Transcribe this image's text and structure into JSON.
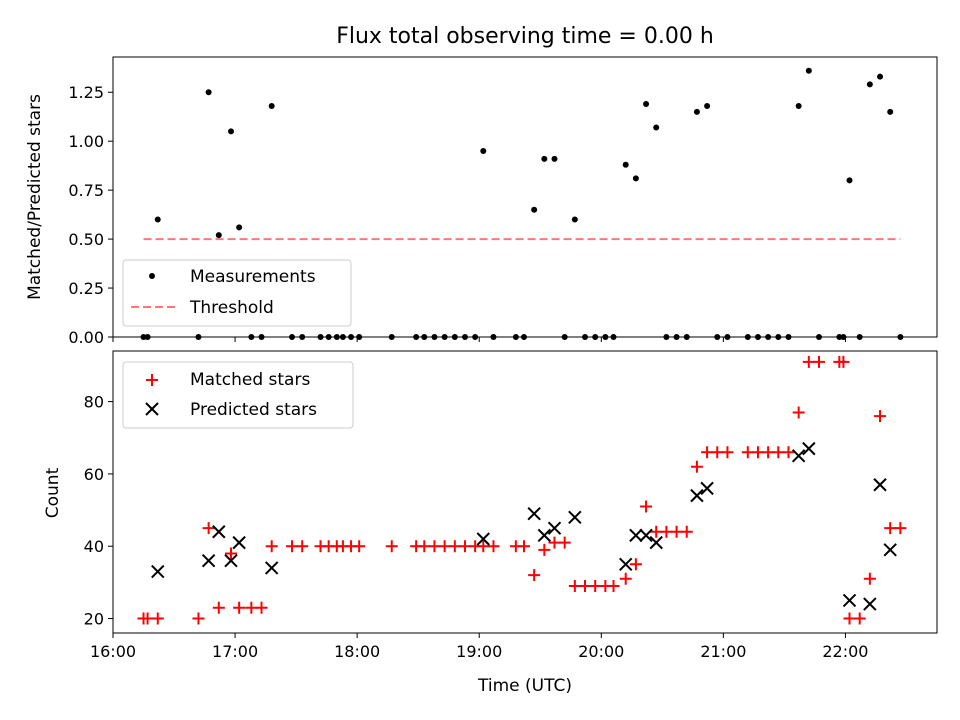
{
  "chart_data": [
    {
      "type": "scatter",
      "title": "Flux total observing time = 0.00 h",
      "xlabel": "",
      "ylabel": "Matched/Predicted stars",
      "xlim": [
        "16:00",
        "22:45"
      ],
      "ylim": [
        0,
        1.43
      ],
      "xtick_labels": [],
      "ytick_values": [
        0.0,
        0.25,
        0.5,
        0.75,
        1.0,
        1.25
      ],
      "ytick_labels": [
        "0.00",
        "0.25",
        "0.50",
        "0.75",
        "1.00",
        "1.25"
      ],
      "legend": {
        "position": "lower-left",
        "entries": [
          "Measurements",
          "Threshold"
        ]
      },
      "series": [
        {
          "name": "Measurements",
          "color": "#000000",
          "marker": "dot",
          "points": [
            [
              "16:15",
              0.0
            ],
            [
              "16:17",
              0.0
            ],
            [
              "16:22",
              0.6
            ],
            [
              "16:42",
              0.0
            ],
            [
              "16:47",
              1.25
            ],
            [
              "16:52",
              0.52
            ],
            [
              "16:58",
              1.05
            ],
            [
              "17:02",
              0.56
            ],
            [
              "17:08",
              0.0
            ],
            [
              "17:13",
              0.0
            ],
            [
              "17:18",
              1.18
            ],
            [
              "17:28",
              0.0
            ],
            [
              "17:33",
              0.0
            ],
            [
              "17:42",
              0.0
            ],
            [
              "17:46",
              0.0
            ],
            [
              "17:50",
              0.0
            ],
            [
              "17:53",
              0.0
            ],
            [
              "17:57",
              0.0
            ],
            [
              "18:01",
              0.0
            ],
            [
              "18:17",
              0.0
            ],
            [
              "18:29",
              0.0
            ],
            [
              "18:33",
              0.0
            ],
            [
              "18:38",
              0.0
            ],
            [
              "18:43",
              0.0
            ],
            [
              "18:48",
              0.0
            ],
            [
              "18:53",
              0.0
            ],
            [
              "18:58",
              0.0
            ],
            [
              "19:02",
              0.95
            ],
            [
              "19:07",
              0.0
            ],
            [
              "19:18",
              0.0
            ],
            [
              "19:22",
              0.0
            ],
            [
              "19:27",
              0.65
            ],
            [
              "19:32",
              0.91
            ],
            [
              "19:37",
              0.91
            ],
            [
              "19:42",
              0.0
            ],
            [
              "19:47",
              0.6
            ],
            [
              "19:52",
              0.0
            ],
            [
              "19:57",
              0.0
            ],
            [
              "20:02",
              0.0
            ],
            [
              "20:06",
              0.0
            ],
            [
              "20:12",
              0.88
            ],
            [
              "20:17",
              0.81
            ],
            [
              "20:22",
              1.19
            ],
            [
              "20:27",
              1.07
            ],
            [
              "20:32",
              0.0
            ],
            [
              "20:37",
              0.0
            ],
            [
              "20:42",
              0.0
            ],
            [
              "20:47",
              1.15
            ],
            [
              "20:52",
              1.18
            ],
            [
              "20:57",
              0.0
            ],
            [
              "21:02",
              0.0
            ],
            [
              "21:12",
              0.0
            ],
            [
              "21:17",
              0.0
            ],
            [
              "21:22",
              0.0
            ],
            [
              "21:27",
              0.0
            ],
            [
              "21:32",
              0.0
            ],
            [
              "21:37",
              1.18
            ],
            [
              "21:42",
              1.36
            ],
            [
              "21:47",
              0.0
            ],
            [
              "21:57",
              0.0
            ],
            [
              "21:59",
              0.0
            ],
            [
              "22:02",
              0.8
            ],
            [
              "22:07",
              0.0
            ],
            [
              "22:12",
              1.29
            ],
            [
              "22:17",
              1.33
            ],
            [
              "22:22",
              1.15
            ],
            [
              "22:27",
              0.0
            ]
          ]
        },
        {
          "name": "Threshold",
          "color": "#ff7777",
          "style": "dashed",
          "points": [
            [
              "16:15",
              0.5
            ],
            [
              "22:27",
              0.5
            ]
          ]
        }
      ]
    },
    {
      "type": "scatter",
      "title": "",
      "xlabel": "Time (UTC)",
      "ylabel": "Count",
      "xlim": [
        "16:00",
        "22:45"
      ],
      "ylim": [
        16,
        94
      ],
      "xtick_labels": [
        "16:00",
        "17:00",
        "18:00",
        "19:00",
        "20:00",
        "21:00",
        "22:00"
      ],
      "ytick_values": [
        20,
        40,
        60,
        80
      ],
      "ytick_labels": [
        "20",
        "40",
        "60",
        "80"
      ],
      "legend": {
        "position": "upper-left",
        "entries": [
          "Matched stars",
          "Predicted stars"
        ]
      },
      "series": [
        {
          "name": "Matched stars",
          "color": "#ff0000",
          "marker": "plus",
          "points": [
            [
              "16:15",
              20
            ],
            [
              "16:17",
              20
            ],
            [
              "16:22",
              20
            ],
            [
              "16:42",
              20
            ],
            [
              "16:47",
              45
            ],
            [
              "16:52",
              23
            ],
            [
              "16:58",
              38
            ],
            [
              "17:02",
              23
            ],
            [
              "17:08",
              23
            ],
            [
              "17:13",
              23
            ],
            [
              "17:18",
              40
            ],
            [
              "17:28",
              40
            ],
            [
              "17:33",
              40
            ],
            [
              "17:42",
              40
            ],
            [
              "17:46",
              40
            ],
            [
              "17:50",
              40
            ],
            [
              "17:53",
              40
            ],
            [
              "17:57",
              40
            ],
            [
              "18:01",
              40
            ],
            [
              "18:17",
              40
            ],
            [
              "18:29",
              40
            ],
            [
              "18:33",
              40
            ],
            [
              "18:38",
              40
            ],
            [
              "18:43",
              40
            ],
            [
              "18:48",
              40
            ],
            [
              "18:53",
              40
            ],
            [
              "18:58",
              40
            ],
            [
              "19:02",
              40
            ],
            [
              "19:07",
              40
            ],
            [
              "19:18",
              40
            ],
            [
              "19:22",
              40
            ],
            [
              "19:27",
              32
            ],
            [
              "19:32",
              39
            ],
            [
              "19:37",
              41
            ],
            [
              "19:42",
              41
            ],
            [
              "19:47",
              29
            ],
            [
              "19:52",
              29
            ],
            [
              "19:57",
              29
            ],
            [
              "20:02",
              29
            ],
            [
              "20:06",
              29
            ],
            [
              "20:12",
              31
            ],
            [
              "20:17",
              35
            ],
            [
              "20:22",
              51
            ],
            [
              "20:27",
              44
            ],
            [
              "20:32",
              44
            ],
            [
              "20:37",
              44
            ],
            [
              "20:42",
              44
            ],
            [
              "20:47",
              62
            ],
            [
              "20:52",
              66
            ],
            [
              "20:57",
              66
            ],
            [
              "21:02",
              66
            ],
            [
              "21:12",
              66
            ],
            [
              "21:17",
              66
            ],
            [
              "21:22",
              66
            ],
            [
              "21:27",
              66
            ],
            [
              "21:32",
              66
            ],
            [
              "21:37",
              77
            ],
            [
              "21:42",
              91
            ],
            [
              "21:47",
              91
            ],
            [
              "21:57",
              91
            ],
            [
              "21:59",
              91
            ],
            [
              "22:02",
              20
            ],
            [
              "22:07",
              20
            ],
            [
              "22:12",
              31
            ],
            [
              "22:17",
              76
            ],
            [
              "22:22",
              45
            ],
            [
              "22:27",
              45
            ]
          ]
        },
        {
          "name": "Predicted stars",
          "color": "#000000",
          "marker": "x",
          "points": [
            [
              "16:22",
              33
            ],
            [
              "16:47",
              36
            ],
            [
              "16:52",
              44
            ],
            [
              "16:58",
              36
            ],
            [
              "17:02",
              41
            ],
            [
              "17:18",
              34
            ],
            [
              "19:02",
              42
            ],
            [
              "19:27",
              49
            ],
            [
              "19:32",
              43
            ],
            [
              "19:37",
              45
            ],
            [
              "19:47",
              48
            ],
            [
              "20:12",
              35
            ],
            [
              "20:17",
              43
            ],
            [
              "20:22",
              43
            ],
            [
              "20:27",
              41
            ],
            [
              "20:47",
              54
            ],
            [
              "20:52",
              56
            ],
            [
              "21:37",
              65
            ],
            [
              "21:42",
              67
            ],
            [
              "22:02",
              25
            ],
            [
              "22:12",
              24
            ],
            [
              "22:17",
              57
            ],
            [
              "22:22",
              39
            ]
          ]
        }
      ]
    }
  ]
}
